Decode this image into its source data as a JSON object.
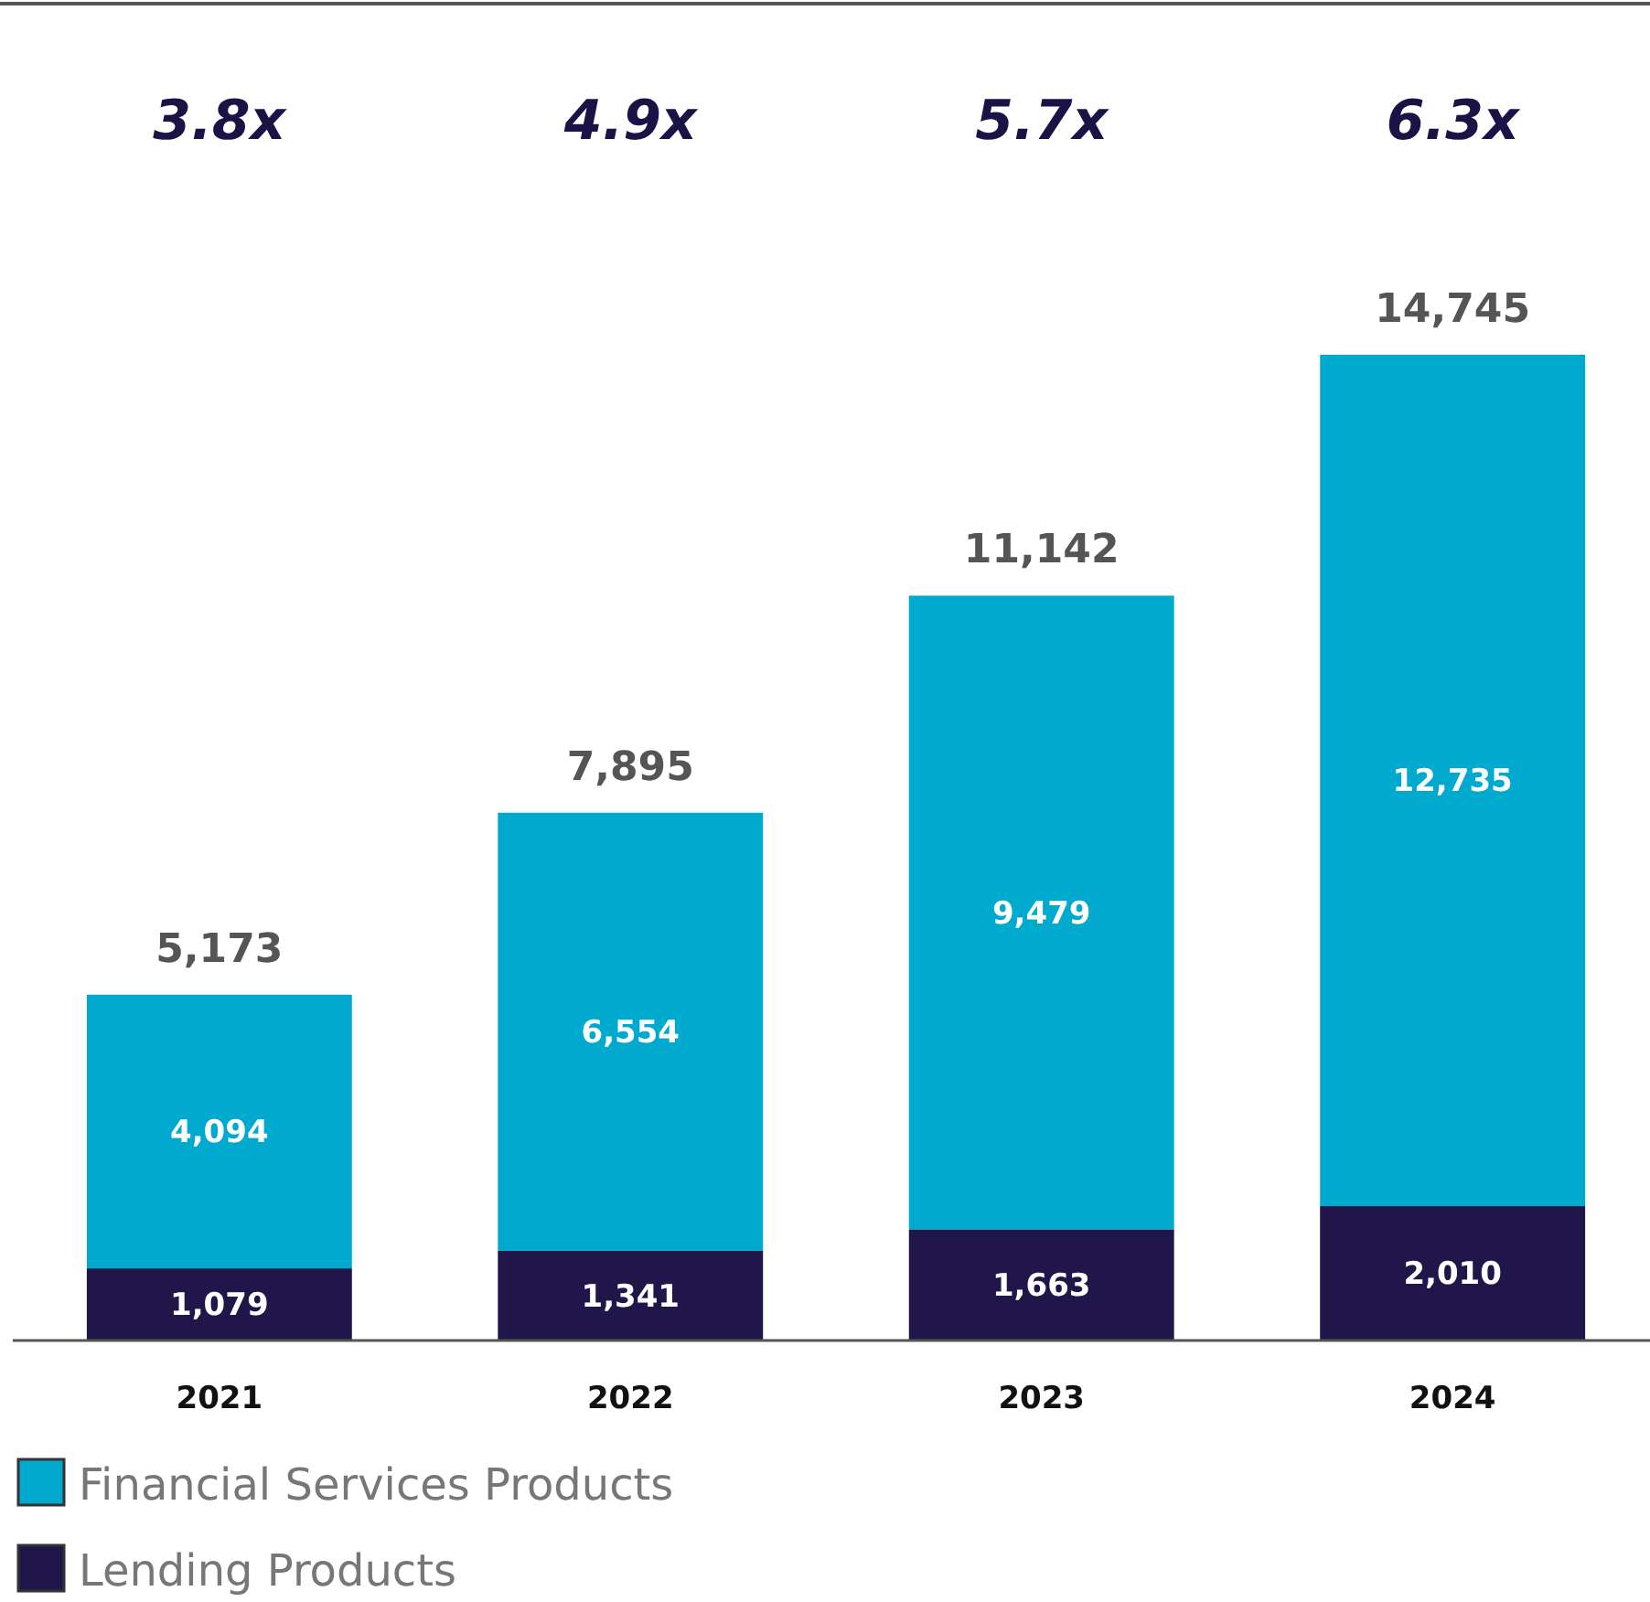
{
  "chart_data": {
    "type": "bar",
    "stacked": true,
    "categories": [
      "2021",
      "2022",
      "2023",
      "2024"
    ],
    "series": [
      {
        "name": "Lending Products",
        "color": "#21164a",
        "values": [
          1079,
          1341,
          1663,
          2010
        ],
        "value_labels": [
          "1,079",
          "1,341",
          "1,663",
          "2,010"
        ]
      },
      {
        "name": "Financial Services Products",
        "color": "#00aacf",
        "values": [
          4094,
          6554,
          9479,
          12735
        ],
        "value_labels": [
          "4,094",
          "6,554",
          "9,479",
          "12,735"
        ]
      }
    ],
    "totals": [
      "5,173",
      "7,895",
      "11,142",
      "14,745"
    ],
    "annotations": [
      "3.8x",
      "4.9x",
      "5.7x",
      "6.3x"
    ],
    "legend": "bottom left"
  }
}
